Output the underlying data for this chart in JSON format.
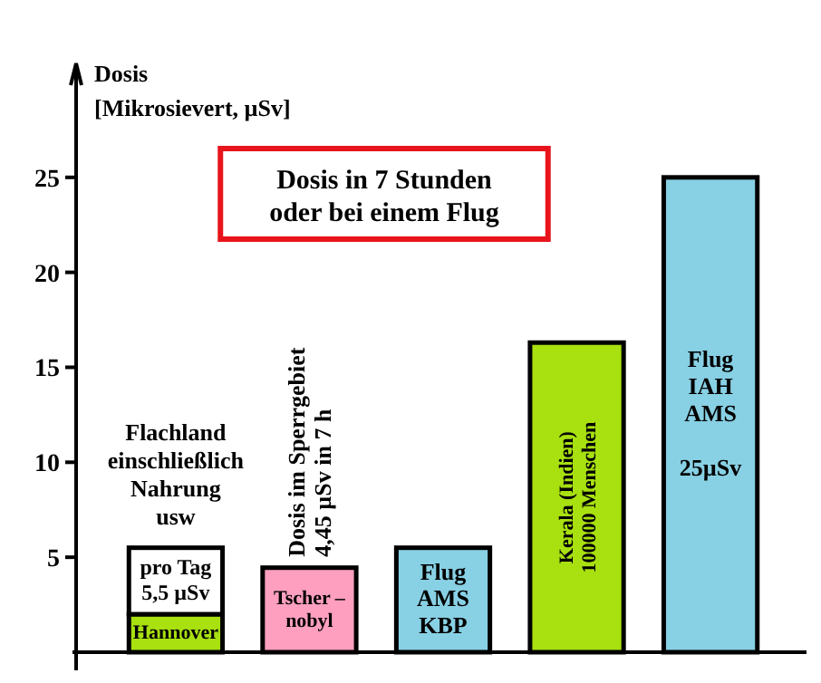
{
  "chart_data": {
    "type": "bar",
    "stacked": true,
    "title": "Dosis in 7 Stunden\noder bei einem Flug",
    "ylabel": "Dosis\n[Mikrosievert,  µSv]",
    "categories": [
      "Hannover",
      "Tscher –\nnobyl",
      "Flug\nAMS\nKBP",
      "Kerala  (Indien)\n100000 Menschen",
      "Flug\nIAH\nAMS\n\n25µSv"
    ],
    "series": [
      {
        "colors": [
          "#a8e010",
          "#ff9fc0",
          "#88d0e4",
          "#a8e010",
          "#88d0e4"
        ],
        "values": [
          2,
          4.45,
          5.5,
          16.3,
          25
        ]
      },
      {
        "color": "#ffffff",
        "values": [
          3.5,
          null,
          null,
          null,
          null
        ],
        "value_labels": [
          "pro Tag\n5,5 µSv",
          null,
          null,
          null,
          null
        ]
      }
    ],
    "ylim": [
      0,
      31
    ],
    "yticks": [
      5,
      10,
      15,
      20,
      25
    ],
    "grid": false,
    "annotations": [
      {
        "text": "Flachland\neinschließlich\nNahrung\nusw",
        "x": "Hannover",
        "y": 5.5
      },
      {
        "text": "Dosis im Sperrgebiet\n4,45 µSv in 7 h",
        "x": "Tscher –\nnobyl",
        "y": 4.45
      }
    ]
  }
}
